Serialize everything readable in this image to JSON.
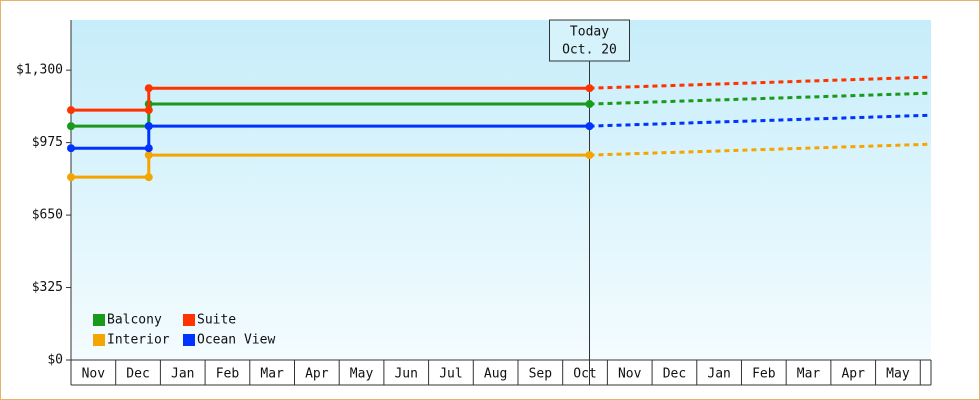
{
  "chart_data": {
    "type": "line",
    "categories": [
      "Nov",
      "Dec",
      "Jan",
      "Feb",
      "Mar",
      "Apr",
      "May",
      "Jun",
      "Jul",
      "Aug",
      "Sep",
      "Oct",
      "Nov",
      "Dec",
      "Jan",
      "Feb",
      "Mar",
      "Apr",
      "May",
      null
    ],
    "xlim": [
      0,
      19.24
    ],
    "ylim": [
      0,
      1525
    ],
    "yticks": [
      {
        "value": 0,
        "label": "$0"
      },
      {
        "value": 325,
        "label": "$325"
      },
      {
        "value": 650,
        "label": "$650"
      },
      {
        "value": 975,
        "label": "$975"
      },
      {
        "value": 1300,
        "label": "$1,300"
      }
    ],
    "legend": "bottom-left",
    "annotation": {
      "x": 11.6,
      "lines": [
        "Today",
        "Oct. 20"
      ]
    },
    "series": [
      {
        "name": "Balcony",
        "color": "#1a9a1a",
        "x": [
          0,
          1.74,
          1.74,
          11.6
        ],
        "values": [
          1049,
          1049,
          1148,
          1148
        ],
        "forecast": {
          "x": [
            11.6,
            19.24
          ],
          "values": [
            1148,
            1197
          ]
        }
      },
      {
        "name": "Suite",
        "color": "#ff3300",
        "x": [
          0,
          1.74,
          1.74,
          11.6
        ],
        "values": [
          1121,
          1121,
          1219,
          1219
        ],
        "forecast": {
          "x": [
            11.6,
            19.24
          ],
          "values": [
            1219,
            1269
          ]
        }
      },
      {
        "name": "Interior",
        "color": "#f5a500",
        "x": [
          0,
          1.74,
          1.74,
          11.6
        ],
        "values": [
          820,
          820,
          919,
          919
        ],
        "forecast": {
          "x": [
            11.6,
            19.24
          ],
          "values": [
            919,
            968
          ]
        }
      },
      {
        "name": "Ocean View",
        "color": "#0033ff",
        "x": [
          0,
          1.74,
          1.74,
          11.6
        ],
        "values": [
          950,
          950,
          1049,
          1049
        ],
        "forecast": {
          "x": [
            11.6,
            19.24
          ],
          "values": [
            1049,
            1098
          ]
        }
      }
    ]
  }
}
